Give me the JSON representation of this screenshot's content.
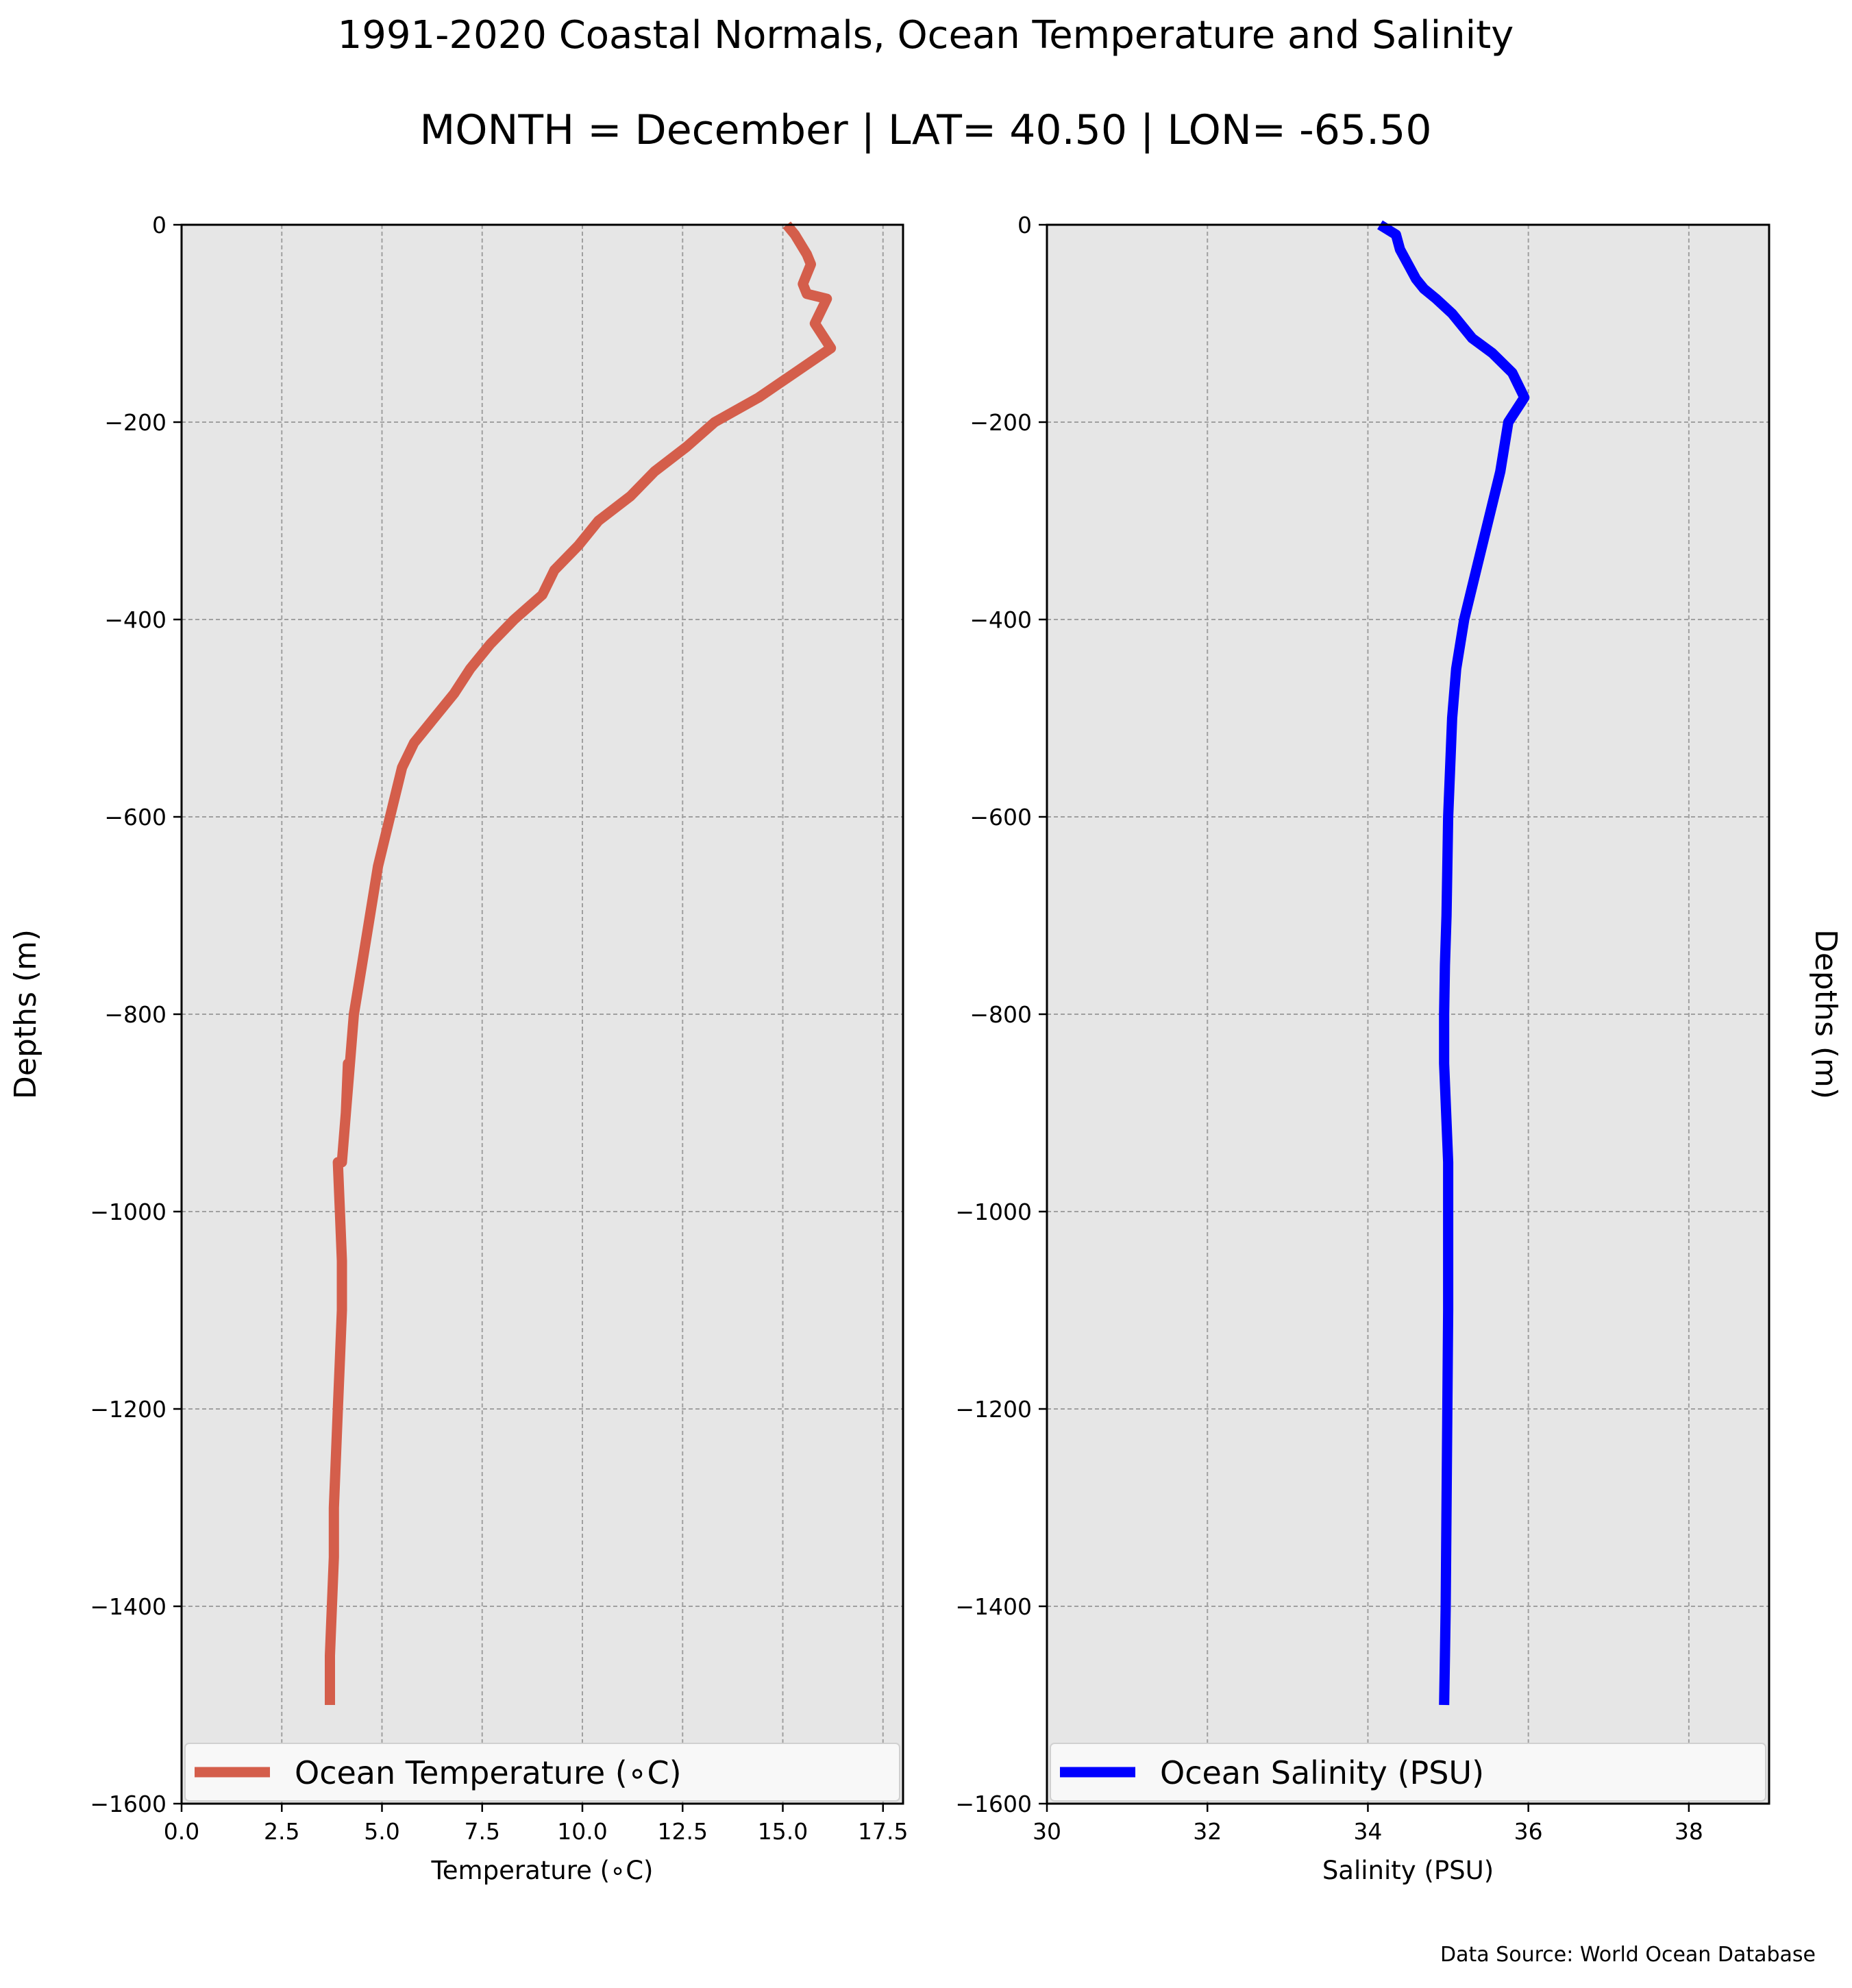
{
  "figure": {
    "title": "1991-2020 Coastal Normals, Ocean Temperature and Salinity",
    "subtitle": "MONTH = December | LAT= 40.50 | LON= -65.50",
    "source": "Data Source: World Ocean Database"
  },
  "chart_data": [
    {
      "type": "line",
      "xlabel": "Temperature (∘C)",
      "ylabel": "Depths (m)",
      "xlim": [
        0,
        18
      ],
      "ylim": [
        -1600,
        0
      ],
      "xticks": [
        0,
        2.5,
        5,
        7.5,
        10,
        12.5,
        15,
        17.5
      ],
      "xtick_labels": [
        "0.0",
        "2.5",
        "5.0",
        "7.5",
        "10.0",
        "12.5",
        "15.0",
        "17.5"
      ],
      "yticks": [
        0,
        -200,
        -400,
        -600,
        -800,
        -1000,
        -1200,
        -1400,
        -1600
      ],
      "ytick_labels": [
        "0",
        "−200",
        "−400",
        "−600",
        "−800",
        "−1000",
        "−1200",
        "−1400",
        "−1600"
      ],
      "grid": true,
      "legend": "bottom",
      "color": "#d45e4b",
      "series": [
        {
          "name": "Ocean Temperature (∘C)",
          "x": [
            15.1,
            15.3,
            15.6,
            15.7,
            15.6,
            15.5,
            15.6,
            16.1,
            15.8,
            16.2,
            14.4,
            13.3,
            12.6,
            11.8,
            11.2,
            10.4,
            9.9,
            9.3,
            9.0,
            8.3,
            7.7,
            7.2,
            6.8,
            6.3,
            5.8,
            5.5,
            5.2,
            4.9,
            4.7,
            4.5,
            4.3,
            4.2,
            4.1,
            4.15,
            4.1,
            4.0,
            3.9,
            3.95,
            4.0,
            4.0,
            3.95,
            3.9,
            3.85,
            3.8,
            3.8,
            3.75,
            3.7,
            3.7,
            3.7
          ],
          "y": [
            0,
            -10,
            -30,
            -40,
            -50,
            -60,
            -70,
            -75,
            -100,
            -125,
            -175,
            -200,
            -225,
            -250,
            -275,
            -300,
            -325,
            -350,
            -375,
            -400,
            -425,
            -450,
            -475,
            -500,
            -525,
            -550,
            -600,
            -650,
            -700,
            -750,
            -800,
            -850,
            -900,
            -850,
            -900,
            -950,
            -950,
            -1000,
            -1050,
            -1100,
            -1150,
            -1200,
            -1250,
            -1300,
            -1350,
            -1400,
            -1450,
            -1450,
            -1500
          ]
        }
      ]
    },
    {
      "type": "line",
      "xlabel": "Salinity (PSU)",
      "ylabel": "Depths (m)",
      "xlim": [
        30,
        39
      ],
      "ylim": [
        -1600,
        0
      ],
      "xticks": [
        30,
        32,
        34,
        36,
        38
      ],
      "xtick_labels": [
        "30",
        "32",
        "34",
        "36",
        "38"
      ],
      "yticks": [
        0,
        -200,
        -400,
        -600,
        -800,
        -1000,
        -1200,
        -1400,
        -1600
      ],
      "ytick_labels": [
        "0",
        "−200",
        "−400",
        "−600",
        "−800",
        "−1000",
        "−1200",
        "−1400",
        "−1600"
      ],
      "grid": true,
      "legend": "bottom",
      "color": "#0000ff",
      "series": [
        {
          "name": "Ocean Salinity (PSU)",
          "x": [
            34.15,
            34.35,
            34.4,
            34.5,
            34.6,
            34.7,
            34.85,
            35.05,
            35.3,
            35.55,
            35.8,
            35.95,
            35.75,
            35.65,
            35.5,
            35.35,
            35.2,
            35.1,
            35.05,
            35.0,
            34.98,
            34.96,
            34.95,
            34.95,
            35.0,
            35.0,
            35.0,
            34.99,
            34.98,
            34.97,
            34.96,
            34.95
          ],
          "y": [
            0,
            -10,
            -25,
            -40,
            -55,
            -65,
            -75,
            -90,
            -115,
            -130,
            -150,
            -175,
            -200,
            -250,
            -300,
            -350,
            -400,
            -450,
            -500,
            -600,
            -700,
            -750,
            -800,
            -850,
            -950,
            -1000,
            -1100,
            -1200,
            -1300,
            -1400,
            -1450,
            -1500
          ]
        }
      ]
    }
  ]
}
